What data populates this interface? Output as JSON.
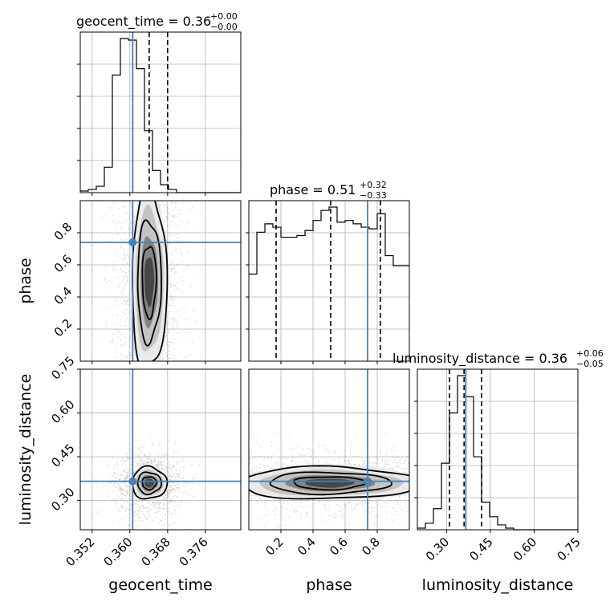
{
  "chart_data": {
    "type": "corner",
    "params": [
      "geocent_time",
      "phase",
      "luminosity_distance"
    ],
    "axes": {
      "geocent_time": {
        "label": "geocent_time",
        "range": [
          0.3495,
          0.3835
        ],
        "ticks": [
          0.352,
          0.36,
          0.368,
          0.376
        ],
        "tick_labels": [
          "0.352",
          "0.360",
          "0.368",
          "0.376"
        ]
      },
      "phase": {
        "label": "phase",
        "range": [
          0.0,
          1.0
        ],
        "ticks": [
          0.2,
          0.4,
          0.6,
          0.8
        ],
        "tick_labels": [
          "0.2",
          "0.4",
          "0.6",
          "0.8"
        ]
      },
      "luminosity_distance": {
        "label": "luminosity_distance",
        "range": [
          0.2,
          0.75
        ],
        "ticks": [
          0.3,
          0.45,
          0.6,
          0.75
        ],
        "tick_labels": [
          "0.30",
          "0.45",
          "0.60",
          "0.75"
        ]
      }
    },
    "titles": [
      {
        "param": "geocent_time",
        "text": "geocent_time = 0.36",
        "plus": "+0.00",
        "minus": "−0.00"
      },
      {
        "param": "phase",
        "text": "phase = 0.51",
        "plus": "+0.32",
        "minus": "−0.33"
      },
      {
        "param": "luminosity_distance",
        "text": "luminosity_distance = 0.36",
        "plus": "+0.06",
        "minus": "−0.05"
      }
    ],
    "truths": {
      "geocent_time": 0.3606,
      "phase": 0.74,
      "luminosity_distance": 0.366
    },
    "quantiles": {
      "geocent_time": [
        0.3606,
        0.3641,
        0.368
      ],
      "phase": [
        0.17,
        0.51,
        0.82
      ],
      "luminosity_distance": [
        0.31,
        0.36,
        0.42
      ]
    },
    "histograms": {
      "geocent_time": {
        "bin_start": 0.3495,
        "bin_width": 0.0017,
        "counts": [
          1,
          2,
          4,
          16,
          74,
          97,
          96,
          78,
          39,
          14,
          5,
          2,
          0,
          0,
          0,
          0,
          0,
          0,
          0,
          0
        ]
      },
      "phase": {
        "bin_start": 0.0,
        "bin_width": 0.05,
        "counts": [
          52,
          77,
          82,
          80,
          74,
          74,
          75,
          78,
          84,
          90,
          92,
          83,
          84,
          82,
          80,
          79,
          88,
          63,
          57,
          57
        ]
      },
      "luminosity_distance": {
        "bin_start": 0.2,
        "bin_width": 0.0275,
        "counts": [
          1,
          4,
          13,
          41,
          72,
          95,
          82,
          45,
          17,
          8,
          3,
          1,
          0,
          0,
          0,
          0,
          0,
          0,
          0,
          0
        ]
      }
    },
    "grid": true
  }
}
